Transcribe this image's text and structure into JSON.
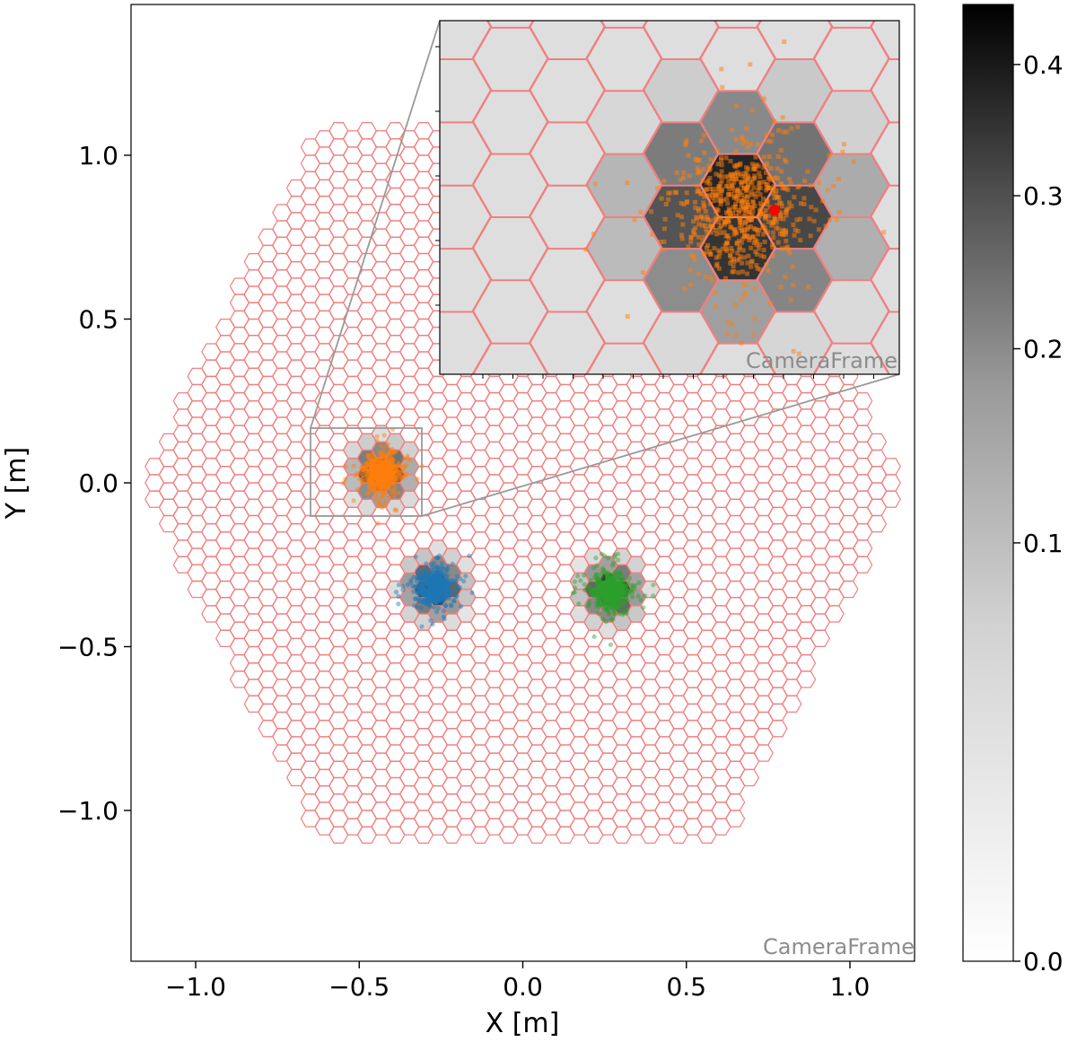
{
  "chart_data": {
    "type": "scatter",
    "title": "",
    "xlabel": "X [m]",
    "ylabel": "Y [m]",
    "xlim": [
      -1.2,
      1.2
    ],
    "ylim": [
      -1.45,
      1.45
    ],
    "xticks": [
      -1.0,
      -0.5,
      0.0,
      0.5,
      1.0
    ],
    "xtick_labels": [
      "−1.0",
      "−0.5",
      "0.0",
      "0.5",
      "1.0"
    ],
    "yticks": [
      -1.0,
      -0.5,
      0.0,
      0.5,
      1.0
    ],
    "ytick_labels": [
      "−1.0",
      "−0.5",
      "0.0",
      "0.5",
      "1.0"
    ],
    "frame_label": "CameraFrame",
    "camera": {
      "shape": "hexagonal pixel grid",
      "pixel_pitch_m": 0.05,
      "outline_color": "#f08080",
      "extent_x_m": [
        -1.17,
        1.17
      ],
      "extent_y_m": [
        -1.09,
        1.09
      ]
    },
    "colorbar": {
      "cmap": "Greys",
      "scale": "power",
      "range": [
        0.0,
        0.45
      ],
      "ticks": [
        0.0,
        0.1,
        0.2,
        0.3,
        0.4
      ],
      "tick_labels": [
        "0.0",
        "0.1",
        "0.2",
        "0.3",
        "0.4"
      ]
    },
    "series": [
      {
        "color": "#ff7f0e",
        "center": [
          -0.43,
          0.03
        ],
        "spread_m": 0.03
      },
      {
        "color": "#1f77b4",
        "center": [
          -0.27,
          -0.32
        ],
        "spread_m": 0.03
      },
      {
        "color": "#2ca02c",
        "center": [
          0.27,
          -0.33
        ],
        "spread_m": 0.03
      }
    ],
    "inset": {
      "xlim": [
        -0.66,
        -0.31
      ],
      "ylim": [
        -0.1,
        0.18
      ],
      "frame_label": "CameraFrame",
      "marker": {
        "color": "#ff0000",
        "x": -0.405,
        "y": 0.03
      }
    }
  }
}
